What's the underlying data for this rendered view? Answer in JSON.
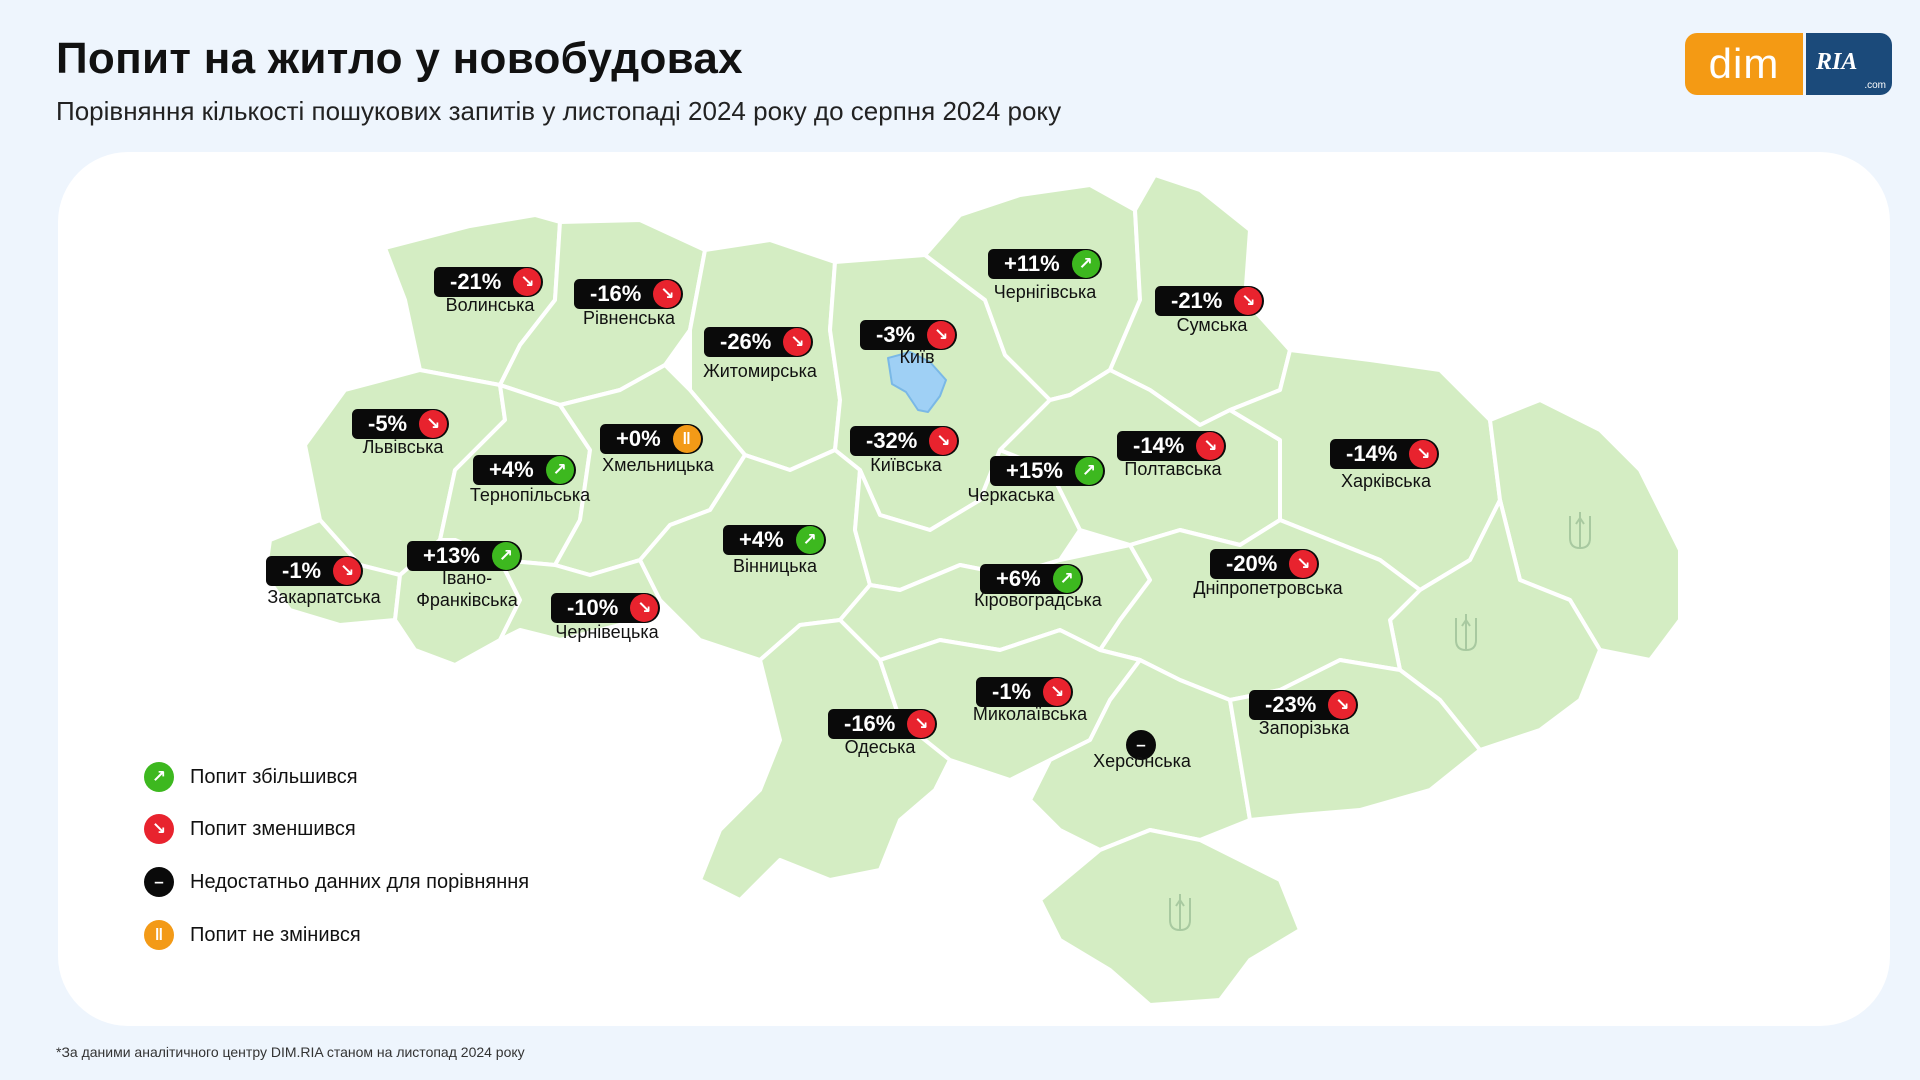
{
  "header": {
    "title": "Попит на житло у новобудовах",
    "subtitle": "Порівняння кількості пошукових запитів у листопаді 2024 року до серпня 2024 року"
  },
  "logo": {
    "dim": "dim",
    "ria": "RIA",
    "ria_suffix": ".com"
  },
  "colors": {
    "background": "#eef5fd",
    "map_fill": "#d4edc3",
    "map_stroke": "#ffffff",
    "kyiv_city": "#9fd0f5",
    "increase": "#3db81f",
    "decrease": "#e8232e",
    "no_change": "#f39a17",
    "no_data": "#0a0a0a",
    "logo_orange": "#f49a14",
    "logo_blue": "#1b4a7a"
  },
  "icons": {
    "increase": "arrow-up-right-icon",
    "decrease": "arrow-down-right-icon",
    "no_change": "pause-icon",
    "no_data": "minus-icon",
    "emblem": "trident-icon"
  },
  "regions": [
    {
      "id": "volynska",
      "name": "Волинська",
      "change": "-21%",
      "trend": "decrease"
    },
    {
      "id": "rivnenska",
      "name": "Рівненська",
      "change": "-16%",
      "trend": "decrease"
    },
    {
      "id": "zhytomyrska",
      "name": "Житомирська",
      "change": "-26%",
      "trend": "decrease"
    },
    {
      "id": "kyiv",
      "name": "Київ",
      "change": "-3%",
      "trend": "decrease"
    },
    {
      "id": "chernihivska",
      "name": "Чернігівська",
      "change": "+11%",
      "trend": "increase"
    },
    {
      "id": "sumska",
      "name": "Сумська",
      "change": "-21%",
      "trend": "decrease"
    },
    {
      "id": "lvivska",
      "name": "Львівська",
      "change": "-5%",
      "trend": "decrease"
    },
    {
      "id": "khmelnytska",
      "name": "Хмельницька",
      "change": "+0%",
      "trend": "no_change"
    },
    {
      "id": "ternopilska",
      "name": "Тернопільська",
      "change": "+4%",
      "trend": "increase"
    },
    {
      "id": "kyivska",
      "name": "Київська",
      "change": "-32%",
      "trend": "decrease"
    },
    {
      "id": "cherkaska",
      "name": "Черкаська",
      "change": "+15%",
      "trend": "increase"
    },
    {
      "id": "poltavska",
      "name": "Полтавська",
      "change": "-14%",
      "trend": "decrease"
    },
    {
      "id": "kharkivska",
      "name": "Харківська",
      "change": "-14%",
      "trend": "decrease"
    },
    {
      "id": "zakarpatska",
      "name": "Закарпатська",
      "change": "-1%",
      "trend": "decrease"
    },
    {
      "id": "ivano_frankivska",
      "name": "Івано-\nФранківська",
      "change": "+13%",
      "trend": "increase"
    },
    {
      "id": "chernivetska",
      "name": "Чернівецька",
      "change": "-10%",
      "trend": "decrease"
    },
    {
      "id": "vinnytska",
      "name": "Вінницька",
      "change": "+4%",
      "trend": "increase"
    },
    {
      "id": "kirovohradska",
      "name": "Кіровоградська",
      "change": "+6%",
      "trend": "increase"
    },
    {
      "id": "dnipropetrovska",
      "name": "Дніпропетровська",
      "change": "-20%",
      "trend": "decrease"
    },
    {
      "id": "mykolaivska",
      "name": "Миколаївська",
      "change": "-1%",
      "trend": "decrease"
    },
    {
      "id": "odeska",
      "name": "Одеська",
      "change": "-16%",
      "trend": "decrease"
    },
    {
      "id": "khersonska",
      "name": "Херсонська",
      "change": "",
      "trend": "no_data"
    },
    {
      "id": "zaporizka",
      "name": "Запорізька",
      "change": "-23%",
      "trend": "decrease"
    }
  ],
  "legend": [
    {
      "trend": "increase",
      "label": "Попит збільшився"
    },
    {
      "trend": "decrease",
      "label": "Попит зменшився"
    },
    {
      "trend": "no_data",
      "label": "Недостатньо данних для порівняння"
    },
    {
      "trend": "no_change",
      "label": "Попит не змінився"
    }
  ],
  "footnote": "*За даними аналітичного центру DIM.RIA станом на листопад 2024 року"
}
